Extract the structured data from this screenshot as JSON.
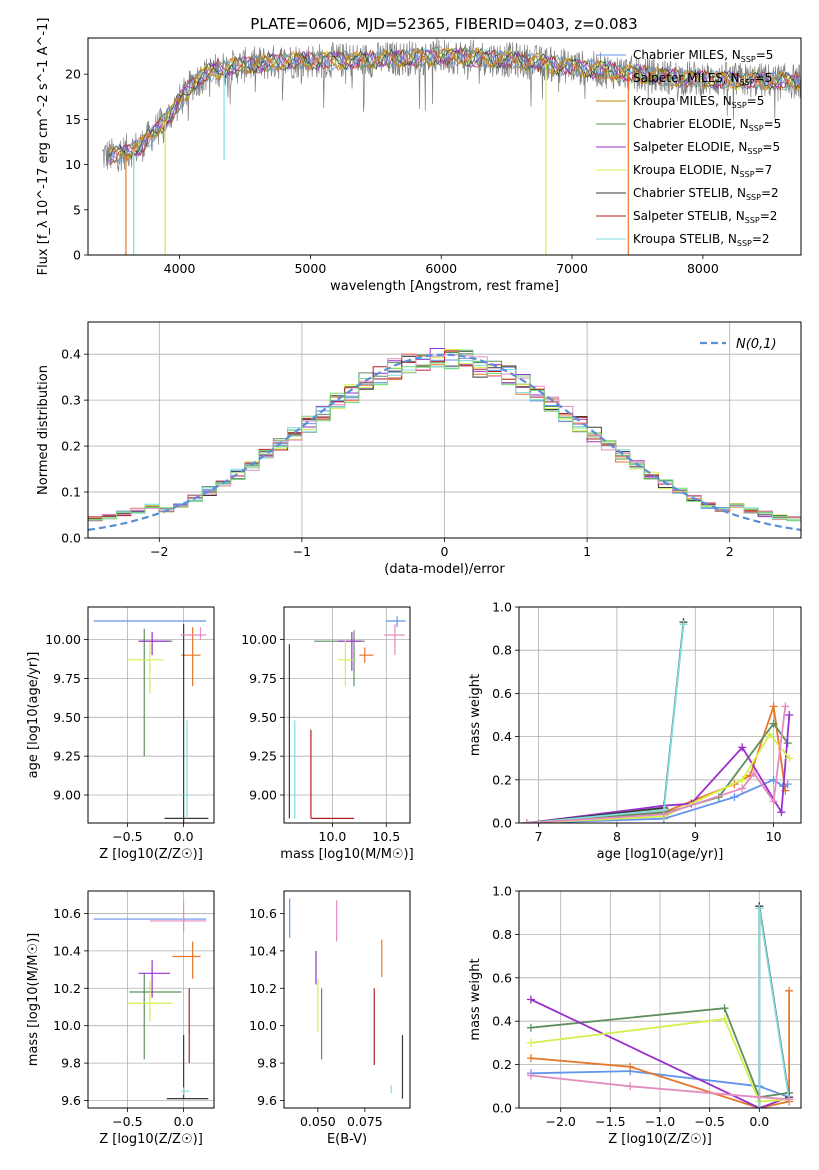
{
  "figure_title": "PLATE=0606, MJD=52365, FIBERID=0403, z=0.083",
  "models": [
    {
      "name": "Chabrier MILES",
      "nssp": "5",
      "color": "#6495ed"
    },
    {
      "name": "Salpeter MILES",
      "nssp": "5",
      "color": "#e8762b"
    },
    {
      "name": "Kroupa MILES",
      "nssp": "5",
      "color": "#b8860b"
    },
    {
      "name": "Chabrier ELODIE",
      "nssp": "5",
      "color": "#5f8f5f"
    },
    {
      "name": "Salpeter ELODIE",
      "nssp": "5",
      "color": "#9932cc"
    },
    {
      "name": "Kroupa ELODIE",
      "nssp": "7",
      "color": "#d4f04d"
    },
    {
      "name": "Chabrier STELIB",
      "nssp": "2",
      "color": "#3a3a3a"
    },
    {
      "name": "Salpeter STELIB",
      "nssp": "2",
      "color": "#b22222"
    },
    {
      "name": "Kroupa STELIB",
      "nssp": "2",
      "color": "#7fdcdc"
    }
  ],
  "extra_colors": {
    "pink": "#e38cbf",
    "green": "#77d877",
    "spectrum_data": "#808080"
  },
  "chart_data": [
    {
      "id": "spectrum",
      "type": "line",
      "title": "PLATE=0606, MJD=52365, FIBERID=0403, z=0.083",
      "xlabel": "wavelength [Angstrom, rest frame]",
      "ylabel": "Flux [f_λ 10^-17 erg cm^-2 s^-1 A^-1]",
      "xlim": [
        3300,
        8750
      ],
      "ylim": [
        0,
        24
      ],
      "xticks": [
        4000,
        5000,
        6000,
        7000,
        8000
      ],
      "yticks": [
        0,
        5,
        10,
        15,
        20
      ],
      "grid": false,
      "legend_position": "right",
      "continuum": {
        "x": [
          3500,
          3600,
          3700,
          3800,
          3900,
          4000,
          4100,
          4200,
          4300,
          4500,
          4700,
          4900,
          5000,
          5200,
          5500,
          5800,
          6000,
          6300,
          6600,
          6900,
          7200,
          7500,
          7800,
          8100,
          8400,
          8700
        ],
        "y": [
          11,
          11.5,
          12,
          13.5,
          15,
          17,
          19,
          20,
          20.5,
          21,
          21.3,
          21.5,
          21.5,
          21.5,
          21.6,
          21.8,
          22,
          21.8,
          21.5,
          21,
          20.5,
          20,
          19.6,
          19.4,
          19.3,
          19.2
        ]
      },
      "absorption_dips": [
        {
          "x": 3590,
          "y": 0
        },
        {
          "x": 3650,
          "y": 0
        },
        {
          "x": 3890,
          "y": 0
        },
        {
          "x": 4340,
          "y": 10.5
        },
        {
          "x": 6800,
          "y": 0
        },
        {
          "x": 7430,
          "y": 0
        }
      ]
    },
    {
      "id": "residuals",
      "type": "histogram",
      "xlabel": "(data-model)/error",
      "ylabel": "Normed distribution",
      "xlim": [
        -2.5,
        2.5
      ],
      "ylim": [
        0,
        0.47
      ],
      "xticks": [
        -2,
        -1,
        0,
        1,
        2
      ],
      "yticks": [
        0.0,
        0.1,
        0.2,
        0.3,
        0.4
      ],
      "grid": true,
      "legend_position": "top-right",
      "legend_label": "N(0,1)",
      "bin_width": 0.1
    },
    {
      "id": "age_vs_Z",
      "type": "errorbar",
      "xlabel": "Z [log10(Z/Z☉)]",
      "ylabel": "age  [log10(age/yr)]",
      "xlim": [
        -0.85,
        0.27
      ],
      "ylim": [
        8.82,
        10.21
      ],
      "xticks": [
        -0.5,
        0.0
      ],
      "yticks": [
        9.0,
        9.25,
        9.5,
        9.75,
        10.0
      ],
      "grid": true,
      "points": [
        {
          "x": 0.0,
          "y": 10.12,
          "xlo": -0.8,
          "xhi": 0.2,
          "ylo": 10.12,
          "yhi": 10.12,
          "c": 0
        },
        {
          "x": 0.08,
          "y": 9.9,
          "xlo": -0.02,
          "xhi": 0.15,
          "ylo": 9.7,
          "yhi": 10.08,
          "c": 1
        },
        {
          "x": -0.35,
          "y": 9.99,
          "xlo": -0.4,
          "xhi": -0.1,
          "ylo": 9.25,
          "yhi": 10.07,
          "c": 3
        },
        {
          "x": -0.28,
          "y": 9.99,
          "xlo": -0.4,
          "xhi": -0.12,
          "ylo": 9.9,
          "yhi": 10.05,
          "c": 4
        },
        {
          "x": -0.3,
          "y": 9.87,
          "xlo": -0.5,
          "xhi": -0.18,
          "ylo": 9.65,
          "yhi": 9.98,
          "c": 5
        },
        {
          "x": 0.0,
          "y": 8.85,
          "xlo": -0.17,
          "xhi": 0.22,
          "ylo": 8.82,
          "yhi": 10.1,
          "c": 6
        },
        {
          "x": 0.03,
          "y": 9.0,
          "xlo": 0.0,
          "xhi": 0.05,
          "ylo": 8.85,
          "yhi": 9.48,
          "c": 8
        },
        {
          "x": 0.15,
          "y": 10.03,
          "xlo": -0.03,
          "xhi": 0.2,
          "ylo": 10.0,
          "yhi": 10.08,
          "c": "pink"
        }
      ]
    },
    {
      "id": "age_vs_mass",
      "type": "errorbar",
      "xlabel": "mass [log10(M/M☉)]",
      "ylabel": "",
      "xlim": [
        9.55,
        10.72
      ],
      "ylim": [
        8.82,
        10.21
      ],
      "xticks": [
        10.0,
        10.5
      ],
      "yticks": [
        9.0,
        9.25,
        9.5,
        9.75,
        10.0
      ],
      "grid": true,
      "points": [
        {
          "x": 10.6,
          "y": 10.12,
          "xlo": 10.5,
          "xhi": 10.68,
          "ylo": 10.08,
          "yhi": 10.15,
          "c": 0
        },
        {
          "x": 10.3,
          "y": 9.9,
          "xlo": 10.25,
          "xhi": 10.38,
          "ylo": 9.85,
          "yhi": 9.95,
          "c": 1
        },
        {
          "x": 10.2,
          "y": 9.99,
          "xlo": 9.83,
          "xhi": 10.3,
          "ylo": 9.7,
          "yhi": 10.06,
          "c": 3
        },
        {
          "x": 10.18,
          "y": 9.99,
          "xlo": 10.05,
          "xhi": 10.27,
          "ylo": 9.8,
          "yhi": 10.05,
          "c": 4
        },
        {
          "x": 10.12,
          "y": 9.87,
          "xlo": 10.05,
          "xhi": 10.2,
          "ylo": 9.7,
          "yhi": 10.0,
          "c": 5
        },
        {
          "x": 9.6,
          "y": 9.97,
          "xlo": 9.6,
          "xhi": 9.6,
          "ylo": 8.85,
          "yhi": 9.97,
          "c": 6
        },
        {
          "x": 9.8,
          "y": 8.85,
          "xlo": 9.8,
          "xhi": 10.2,
          "ylo": 8.85,
          "yhi": 9.42,
          "c": 7
        },
        {
          "x": 9.65,
          "y": 8.85,
          "xlo": 9.65,
          "xhi": 9.65,
          "ylo": 8.85,
          "yhi": 9.48,
          "c": 8
        },
        {
          "x": 10.58,
          "y": 10.03,
          "xlo": 10.48,
          "xhi": 10.67,
          "ylo": 9.9,
          "yhi": 10.1,
          "c": "pink"
        }
      ]
    },
    {
      "id": "weight_vs_age",
      "type": "line",
      "xlabel": "age  [log10(age/yr)]",
      "ylabel": "mass weight",
      "xlim": [
        6.75,
        10.35
      ],
      "ylim": [
        0,
        1
      ],
      "xticks": [
        7,
        8,
        9,
        10
      ],
      "yticks": [
        0.0,
        0.2,
        0.4,
        0.6,
        0.8,
        1.0
      ],
      "grid": true,
      "series": [
        {
          "c": 0,
          "x": [
            6.85,
            8.6,
            9.5,
            10.0,
            10.12,
            10.18
          ],
          "y": [
            0.0,
            0.02,
            0.12,
            0.2,
            0.17,
            0.18
          ]
        },
        {
          "c": 1,
          "x": [
            6.85,
            8.6,
            9.5,
            9.7,
            10.0,
            10.15
          ],
          "y": [
            0.0,
            0.05,
            0.18,
            0.22,
            0.54,
            0.15
          ]
        },
        {
          "c": 3,
          "x": [
            6.85,
            8.65,
            9.3,
            10.0,
            10.18
          ],
          "y": [
            0.0,
            0.05,
            0.12,
            0.46,
            0.37
          ]
        },
        {
          "c": 4,
          "x": [
            6.85,
            8.6,
            8.95,
            9.6,
            10.1,
            10.2
          ],
          "y": [
            0.0,
            0.08,
            0.09,
            0.35,
            0.05,
            0.5
          ]
        },
        {
          "c": 5,
          "x": [
            6.85,
            8.6,
            9.6,
            9.95,
            10.2
          ],
          "y": [
            0.0,
            0.03,
            0.2,
            0.41,
            0.3
          ]
        },
        {
          "c": 6,
          "x": [
            6.85,
            8.6,
            8.85
          ],
          "y": [
            0.0,
            0.07,
            0.93
          ]
        },
        {
          "c": 8,
          "x": [
            6.85,
            8.6,
            8.85
          ],
          "y": [
            0.0,
            0.06,
            0.92
          ]
        },
        {
          "c": "pink",
          "x": [
            6.85,
            8.6,
            9.6,
            9.75,
            10.0,
            10.15
          ],
          "y": [
            0.0,
            0.04,
            0.16,
            0.23,
            0.1,
            0.54
          ]
        }
      ]
    },
    {
      "id": "mass_vs_Z",
      "type": "errorbar",
      "xlabel": "Z [log10(Z/Z☉)]",
      "ylabel": "mass [log10(M/M☉)]",
      "xlim": [
        -0.85,
        0.27
      ],
      "ylim": [
        9.56,
        10.72
      ],
      "xticks": [
        -0.5,
        0.0
      ],
      "yticks": [
        9.6,
        9.8,
        10.0,
        10.2,
        10.4,
        10.6
      ],
      "grid": true,
      "points": [
        {
          "x": -0.1,
          "y": 10.57,
          "xlo": -0.8,
          "xhi": 0.2,
          "ylo": 10.57,
          "yhi": 10.57,
          "c": 0
        },
        {
          "x": 0.08,
          "y": 10.37,
          "xlo": -0.1,
          "xhi": 0.15,
          "ylo": 10.25,
          "yhi": 10.45,
          "c": 1
        },
        {
          "x": -0.35,
          "y": 10.18,
          "xlo": -0.48,
          "xhi": -0.02,
          "ylo": 9.82,
          "yhi": 10.28,
          "c": 3
        },
        {
          "x": -0.28,
          "y": 10.28,
          "xlo": -0.4,
          "xhi": -0.12,
          "ylo": 10.15,
          "yhi": 10.35,
          "c": 4
        },
        {
          "x": -0.3,
          "y": 10.12,
          "xlo": -0.5,
          "xhi": -0.1,
          "ylo": 10.02,
          "yhi": 10.24,
          "c": 5
        },
        {
          "x": 0.0,
          "y": 9.61,
          "xlo": -0.15,
          "xhi": 0.22,
          "ylo": 9.61,
          "yhi": 9.95,
          "c": 6
        },
        {
          "x": 0.05,
          "y": 9.8,
          "xlo": 0.05,
          "xhi": 0.05,
          "ylo": 9.8,
          "yhi": 10.2,
          "c": 7
        },
        {
          "x": 0.0,
          "y": 9.65,
          "xlo": -0.02,
          "xhi": 0.05,
          "ylo": 9.63,
          "yhi": 9.67,
          "c": 8
        },
        {
          "x": 0.0,
          "y": 10.56,
          "xlo": -0.3,
          "xhi": 0.2,
          "ylo": 10.5,
          "yhi": 10.66,
          "c": "pink"
        }
      ]
    },
    {
      "id": "mass_vs_ebv",
      "type": "errorbar",
      "xlabel": "E(B-V)",
      "ylabel": "",
      "xlim": [
        0.032,
        0.099
      ],
      "ylim": [
        9.56,
        10.72
      ],
      "xticks": [
        0.05,
        0.075
      ],
      "yticks": [
        9.6,
        9.8,
        10.0,
        10.2,
        10.4,
        10.6
      ],
      "grid": false,
      "points": [
        {
          "x": 0.035,
          "y": 10.57,
          "xlo": 0.035,
          "xhi": 0.035,
          "ylo": 10.47,
          "yhi": 10.68,
          "c": 0
        },
        {
          "x": 0.084,
          "y": 10.37,
          "xlo": 0.084,
          "xhi": 0.084,
          "ylo": 10.26,
          "yhi": 10.46,
          "c": 1
        },
        {
          "x": 0.052,
          "y": 10.0,
          "xlo": 0.052,
          "xhi": 0.052,
          "ylo": 9.82,
          "yhi": 10.2,
          "c": 3
        },
        {
          "x": 0.049,
          "y": 10.28,
          "xlo": 0.049,
          "xhi": 0.049,
          "ylo": 10.22,
          "yhi": 10.4,
          "c": 4
        },
        {
          "x": 0.05,
          "y": 10.1,
          "xlo": 0.05,
          "xhi": 0.05,
          "ylo": 9.97,
          "yhi": 10.25,
          "c": 5
        },
        {
          "x": 0.095,
          "y": 9.75,
          "xlo": 0.095,
          "xhi": 0.095,
          "ylo": 9.61,
          "yhi": 9.95,
          "c": 6
        },
        {
          "x": 0.08,
          "y": 9.98,
          "xlo": 0.08,
          "xhi": 0.08,
          "ylo": 9.79,
          "yhi": 10.2,
          "c": 7
        },
        {
          "x": 0.089,
          "y": 9.66,
          "xlo": 0.089,
          "xhi": 0.089,
          "ylo": 9.64,
          "yhi": 9.68,
          "c": 8
        },
        {
          "x": 0.06,
          "y": 10.56,
          "xlo": 0.06,
          "xhi": 0.06,
          "ylo": 10.45,
          "yhi": 10.67,
          "c": "pink"
        }
      ]
    },
    {
      "id": "weight_vs_Z",
      "type": "line",
      "xlabel": "Z [log10(Z/Z☉)]",
      "ylabel": "mass weight",
      "xlim": [
        -2.42,
        0.42
      ],
      "ylim": [
        0,
        1
      ],
      "xticks": [
        -2.0,
        -1.5,
        -1.0,
        -0.5,
        0.0
      ],
      "yticks": [
        0.0,
        0.2,
        0.4,
        0.6,
        0.8,
        1.0
      ],
      "grid": true,
      "series": [
        {
          "c": 0,
          "x": [
            -2.3,
            -1.3,
            0.0,
            0.3
          ],
          "y": [
            0.16,
            0.17,
            0.1,
            0.05
          ]
        },
        {
          "c": 1,
          "x": [
            -2.3,
            -1.3,
            0.0,
            0.3,
            0.3
          ],
          "y": [
            0.23,
            0.19,
            0.0,
            0.03,
            0.54
          ]
        },
        {
          "c": 3,
          "x": [
            -2.3,
            -0.35,
            0.0,
            0.3
          ],
          "y": [
            0.37,
            0.46,
            0.05,
            0.07
          ]
        },
        {
          "c": 4,
          "x": [
            -2.3,
            0.0,
            0.3
          ],
          "y": [
            0.5,
            0.0,
            0.05
          ]
        },
        {
          "c": 5,
          "x": [
            -2.3,
            -0.35,
            0.0,
            0.3
          ],
          "y": [
            0.3,
            0.41,
            0.03,
            0.04
          ]
        },
        {
          "c": 6,
          "x": [
            0.0,
            0.0,
            0.3
          ],
          "y": [
            0.0,
            0.93,
            0.05
          ]
        },
        {
          "c": 8,
          "x": [
            0.0,
            0.0,
            0.3
          ],
          "y": [
            0.0,
            0.92,
            0.04
          ]
        },
        {
          "c": "pink",
          "x": [
            -2.3,
            -1.3,
            0.0,
            0.3
          ],
          "y": [
            0.15,
            0.1,
            0.05,
            0.04
          ]
        }
      ]
    }
  ]
}
